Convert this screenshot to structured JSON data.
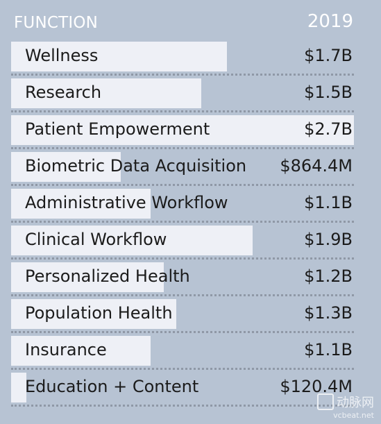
{
  "chart_data": {
    "type": "bar",
    "orientation": "horizontal",
    "column_label": "FUNCTION",
    "year_label": "2019",
    "unit": "USD billions",
    "categories": [
      "Wellness",
      "Research",
      "Patient Empowerment",
      "Biometric Data Acquisition",
      "Administrative Workflow",
      "Clinical Workflow",
      "Personalized Health",
      "Population Health",
      "Insurance",
      "Education + Content"
    ],
    "value_labels": [
      "$1.7B",
      "$1.5B",
      "$2.7B",
      "$864.4M",
      "$1.1B",
      "$1.9B",
      "$1.2B",
      "$1.3B",
      "$1.1B",
      "$120.4M"
    ],
    "values": [
      1.7,
      1.5,
      2.7,
      0.8644,
      1.1,
      1.9,
      1.2,
      1.3,
      1.1,
      0.1204
    ],
    "xlim": [
      0,
      2.7
    ]
  },
  "watermark": {
    "text": "动脉网",
    "url": "vcbeat.net"
  }
}
